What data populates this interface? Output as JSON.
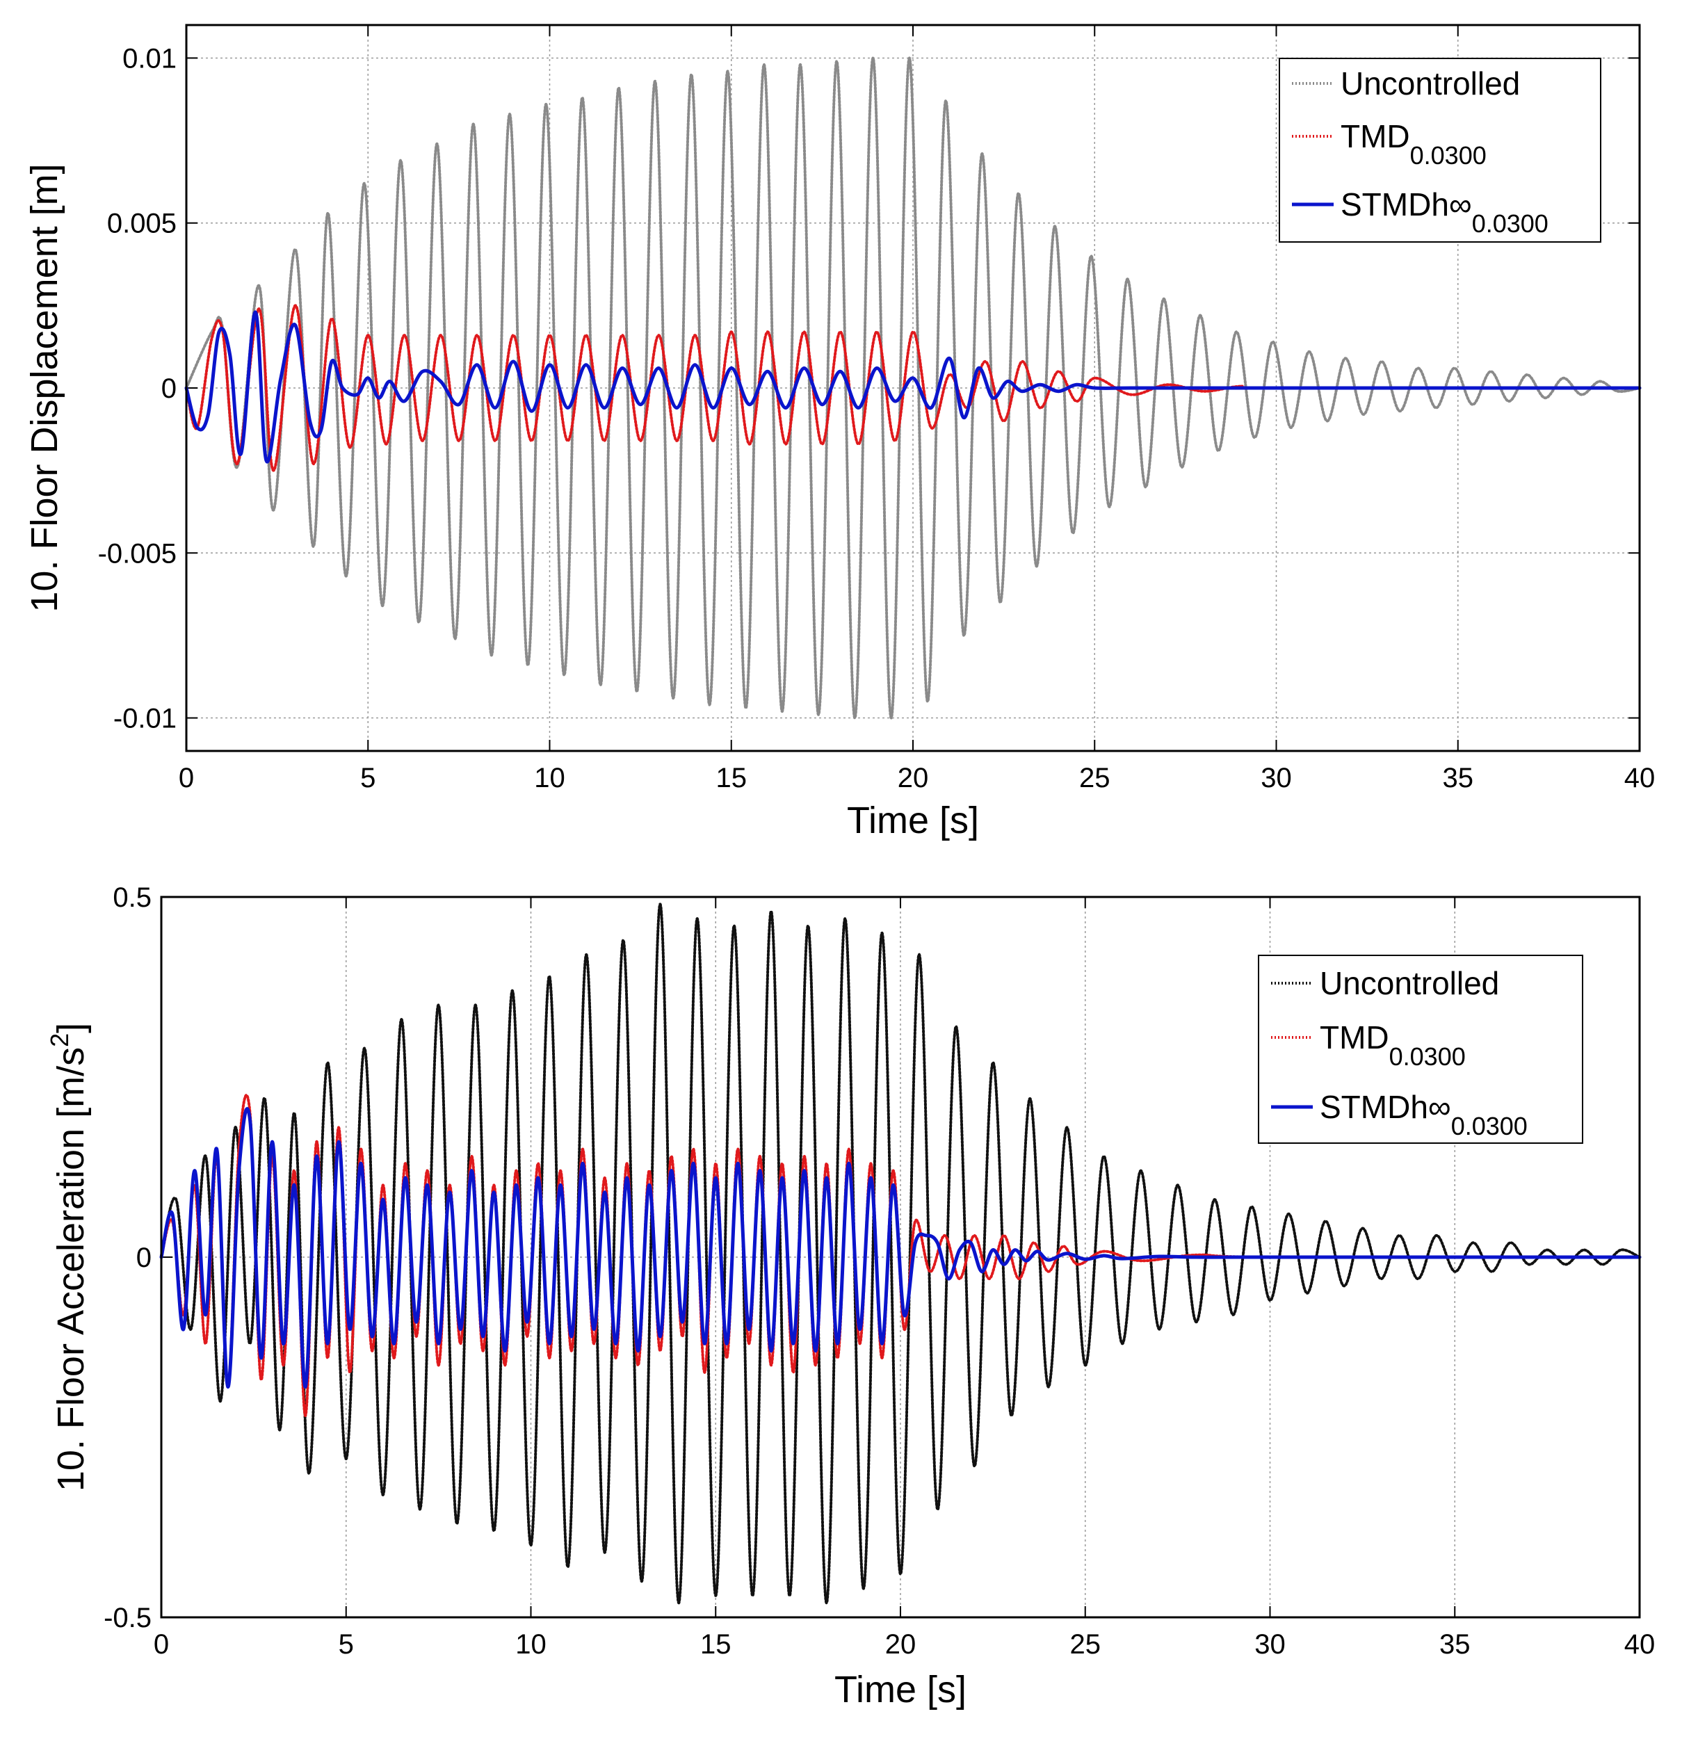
{
  "chart_data": [
    {
      "type": "line",
      "xlabel": "Time [s]",
      "ylabel": "10. Floor Displacement [m]",
      "xlim": [
        0,
        40
      ],
      "ylim": [
        -0.011,
        0.011
      ],
      "xticks": [
        0,
        5,
        10,
        15,
        20,
        25,
        30,
        35,
        40
      ],
      "xtick_labels": [
        "0",
        "5",
        "10",
        "15",
        "20",
        "25",
        "30",
        "35",
        "40"
      ],
      "yticks": [
        -0.01,
        -0.005,
        0,
        0.005,
        0.01
      ],
      "ytick_labels": [
        "-0.01",
        "-0.005",
        "0",
        "0.005",
        "0.01"
      ],
      "grid": true,
      "legend_position": "top-right",
      "series": [
        {
          "name": "Uncontrolled",
          "color": "#8a8a8a",
          "style": "dotted",
          "x": [
            0,
            0.7,
            1.0,
            1.4,
            2.0,
            2.4,
            3.0,
            3.5,
            3.9,
            4.4,
            4.9,
            5.4,
            5.9,
            6.4,
            6.9,
            7.4,
            7.9,
            8.4,
            8.9,
            9.4,
            9.9,
            10.4,
            10.9,
            11.4,
            11.9,
            12.4,
            12.9,
            13.4,
            13.9,
            14.4,
            14.9,
            15.4,
            15.9,
            16.4,
            16.9,
            17.4,
            17.9,
            18.4,
            18.9,
            19.4,
            19.9,
            20.4,
            20.9,
            21.4,
            21.9,
            22.4,
            22.9,
            23.4,
            23.9,
            24.4,
            24.9,
            25.4,
            25.9,
            26.4,
            26.9,
            27.4,
            27.9,
            28.4,
            28.9,
            29.4,
            29.9,
            30.4,
            30.9,
            31.4,
            31.9,
            32.4,
            32.9,
            33.4,
            33.9,
            34.4,
            34.9,
            35.4,
            35.9,
            36.4,
            36.9,
            37.4,
            37.9,
            38.4,
            38.9,
            39.4,
            40.0
          ],
          "y": [
            0,
            0.0017,
            0.0018,
            -0.0024,
            0.0031,
            -0.0037,
            0.0042,
            -0.0048,
            0.0053,
            -0.0057,
            0.0062,
            -0.0066,
            0.0069,
            -0.0071,
            0.0074,
            -0.0076,
            0.008,
            -0.0081,
            0.0083,
            -0.0084,
            0.0086,
            -0.0087,
            0.0088,
            -0.009,
            0.0091,
            -0.0092,
            0.0093,
            -0.0094,
            0.0095,
            -0.0096,
            0.0096,
            -0.0097,
            0.0098,
            -0.0098,
            0.0098,
            -0.0099,
            0.0099,
            -0.01,
            0.01,
            -0.01,
            0.01,
            -0.0095,
            0.0087,
            -0.0075,
            0.0071,
            -0.0065,
            0.0059,
            -0.0054,
            0.0049,
            -0.0044,
            0.004,
            -0.0036,
            0.0033,
            -0.003,
            0.0027,
            -0.0024,
            0.0022,
            -0.0019,
            0.0017,
            -0.0015,
            0.0014,
            -0.0012,
            0.0011,
            -0.001,
            0.0009,
            -0.0008,
            0.0008,
            -0.0007,
            0.0006,
            -0.0006,
            0.0006,
            -0.0005,
            0.0005,
            -0.0004,
            0.0004,
            -0.0003,
            0.0003,
            -0.0002,
            0.0002,
            -0.0001,
            0
          ]
        },
        {
          "name": "TMD",
          "name_subscript": "0.0300",
          "color": "#e0191c",
          "style": "dotted",
          "x": [
            0,
            0.3,
            0.7,
            1.0,
            1.4,
            2.0,
            2.4,
            3.0,
            3.5,
            4.0,
            4.5,
            5.0,
            5.5,
            6.0,
            6.5,
            7.0,
            7.5,
            8.0,
            8.5,
            9.0,
            9.5,
            10.0,
            10.5,
            11.0,
            11.5,
            12.0,
            12.5,
            13.0,
            13.5,
            14.0,
            14.5,
            15.0,
            15.5,
            16.0,
            16.5,
            17.0,
            17.5,
            18.0,
            18.5,
            19.0,
            19.5,
            20.0,
            20.5,
            21.0,
            21.5,
            22.0,
            22.5,
            23.0,
            23.5,
            24.0,
            24.5,
            25.0,
            26.0,
            27.0,
            28.0,
            29.0,
            30.0,
            40.0
          ],
          "y": [
            0,
            -0.0012,
            0.0015,
            0.0017,
            -0.0023,
            0.0024,
            -0.0025,
            0.0025,
            -0.0023,
            0.0021,
            -0.0018,
            0.0016,
            -0.0017,
            0.0016,
            -0.0016,
            0.0016,
            -0.0016,
            0.0016,
            -0.0016,
            0.0016,
            -0.0016,
            0.0016,
            -0.0016,
            0.0016,
            -0.0016,
            0.0016,
            -0.0016,
            0.0016,
            -0.0016,
            0.0016,
            -0.0016,
            0.0017,
            -0.0017,
            0.0017,
            -0.0017,
            0.0017,
            -0.0017,
            0.0017,
            -0.0017,
            0.0017,
            -0.0016,
            0.0017,
            -0.0012,
            0.0004,
            -0.0006,
            0.0008,
            -0.001,
            0.0008,
            -0.0006,
            0.0005,
            -0.0004,
            0.0003,
            -0.0002,
            0.0001,
            -0.0001,
            5e-05,
            0,
            0
          ]
        },
        {
          "name": "STMDh∞",
          "name_subscript": "0.0300",
          "color": "#0a14cc",
          "style": "solid",
          "x": [
            0,
            0.3,
            0.6,
            0.9,
            1.2,
            1.5,
            1.9,
            2.2,
            2.6,
            3.0,
            3.4,
            3.7,
            4.0,
            4.3,
            4.7,
            5.0,
            5.3,
            5.6,
            6.0,
            6.5,
            7.0,
            7.5,
            8.0,
            8.5,
            9.0,
            9.5,
            10.0,
            10.5,
            11.0,
            11.5,
            12.0,
            12.5,
            13.0,
            13.5,
            14.0,
            14.5,
            15.0,
            15.5,
            16.0,
            16.5,
            17.0,
            17.5,
            18.0,
            18.5,
            19.0,
            19.5,
            20.0,
            20.5,
            21.0,
            21.4,
            21.8,
            22.2,
            22.6,
            23.0,
            23.5,
            24.0,
            24.5,
            25.0,
            26.0,
            27.0,
            28.0,
            30.0,
            40.0
          ],
          "y": [
            0,
            -0.0012,
            -0.0008,
            0.0017,
            0.001,
            -0.002,
            0.0023,
            -0.0022,
            0.0003,
            0.0019,
            -0.001,
            -0.0013,
            0.0008,
            0.0,
            -0.0002,
            0.0003,
            -0.0003,
            0.0002,
            -0.0004,
            0.0005,
            0.0002,
            -0.0005,
            0.0007,
            -0.0006,
            0.0008,
            -0.0007,
            0.0007,
            -0.0006,
            0.0007,
            -0.0006,
            0.0006,
            -0.0005,
            0.0006,
            -0.0006,
            0.0007,
            -0.0006,
            0.0006,
            -0.0005,
            0.0005,
            -0.0006,
            0.0006,
            -0.0005,
            0.0005,
            -0.0006,
            0.0006,
            -0.0004,
            0.0003,
            -0.0006,
            0.0009,
            -0.0009,
            0.0006,
            -0.0003,
            0.0002,
            -0.0001,
            0.0001,
            -0.0001,
            0.0001,
            0,
            0,
            0,
            0,
            0,
            0
          ]
        }
      ]
    },
    {
      "type": "line",
      "xlabel": "Time [s]",
      "ylabel": "10. Floor Acceleration [m/s",
      "ylabel_superscript": "2",
      "ylabel_suffix": "]",
      "xlim": [
        0,
        40
      ],
      "ylim": [
        -0.5,
        0.5
      ],
      "xticks": [
        0,
        5,
        10,
        15,
        20,
        25,
        30,
        35,
        40
      ],
      "xtick_labels": [
        "0",
        "5",
        "10",
        "15",
        "20",
        "25",
        "30",
        "35",
        "40"
      ],
      "yticks": [
        -0.5,
        0,
        0.5
      ],
      "ytick_labels": [
        "-0.5",
        "0",
        "0.5"
      ],
      "grid": true,
      "legend_position": "top-right",
      "series": [
        {
          "name": "Uncontrolled",
          "color": "#111111",
          "style": "dotted",
          "x": [
            0,
            0.4,
            0.8,
            1.2,
            1.6,
            2.0,
            2.4,
            2.8,
            3.2,
            3.6,
            4.0,
            4.5,
            5.0,
            5.5,
            6.0,
            6.5,
            7.0,
            7.5,
            8.0,
            8.5,
            9.0,
            9.5,
            10.0,
            10.5,
            11.0,
            11.5,
            12.0,
            12.5,
            13.0,
            13.5,
            14.0,
            14.5,
            15.0,
            15.5,
            16.0,
            16.5,
            17.0,
            17.5,
            18.0,
            18.5,
            19.0,
            19.5,
            20.0,
            20.5,
            21.0,
            21.5,
            22.0,
            22.5,
            23.0,
            23.5,
            24.0,
            24.5,
            25.0,
            25.5,
            26.0,
            26.5,
            27.0,
            27.5,
            28.0,
            28.5,
            29.0,
            29.5,
            30.0,
            30.5,
            31.0,
            31.5,
            32.0,
            32.5,
            33.0,
            33.5,
            34.0,
            34.5,
            35.0,
            35.5,
            36.0,
            36.5,
            37.0,
            37.5,
            38.0,
            38.5,
            39.0,
            39.5,
            40.0
          ],
          "y": [
            0,
            0.08,
            -0.1,
            0.14,
            -0.2,
            0.18,
            -0.12,
            0.22,
            -0.24,
            0.2,
            -0.3,
            0.27,
            -0.28,
            0.29,
            -0.33,
            0.33,
            -0.35,
            0.35,
            -0.37,
            0.35,
            -0.38,
            0.37,
            -0.4,
            0.39,
            -0.43,
            0.42,
            -0.41,
            0.44,
            -0.45,
            0.49,
            -0.48,
            0.47,
            -0.47,
            0.46,
            -0.47,
            0.48,
            -0.47,
            0.46,
            -0.48,
            0.47,
            -0.46,
            0.45,
            -0.44,
            0.42,
            -0.35,
            0.32,
            -0.29,
            0.27,
            -0.22,
            0.22,
            -0.18,
            0.18,
            -0.15,
            0.14,
            -0.12,
            0.12,
            -0.1,
            0.1,
            -0.09,
            0.08,
            -0.08,
            0.07,
            -0.06,
            0.06,
            -0.05,
            0.05,
            -0.04,
            0.04,
            -0.03,
            0.03,
            -0.03,
            0.03,
            -0.02,
            0.02,
            -0.02,
            0.02,
            -0.01,
            0.01,
            -0.01,
            0.01,
            -0.01,
            0.01,
            0
          ]
        },
        {
          "name": "TMD",
          "name_subscript": "0.0300",
          "color": "#e0191c",
          "style": "dotted",
          "x": [
            0,
            0.3,
            0.6,
            0.9,
            1.2,
            1.5,
            1.8,
            2.1,
            2.4,
            2.7,
            3.0,
            3.3,
            3.6,
            3.9,
            4.2,
            4.5,
            4.8,
            5.1,
            5.4,
            5.7,
            6.0,
            6.3,
            6.6,
            6.9,
            7.2,
            7.5,
            7.8,
            8.1,
            8.4,
            8.7,
            9.0,
            9.3,
            9.6,
            9.9,
            10.2,
            10.5,
            10.8,
            11.1,
            11.4,
            11.7,
            12.0,
            12.3,
            12.6,
            12.9,
            13.2,
            13.5,
            13.8,
            14.1,
            14.4,
            14.7,
            15.0,
            15.3,
            15.6,
            15.9,
            16.2,
            16.5,
            16.8,
            17.1,
            17.4,
            17.7,
            18.0,
            18.3,
            18.6,
            18.9,
            19.2,
            19.5,
            19.8,
            20.1,
            20.4,
            20.8,
            21.2,
            21.6,
            22.0,
            22.4,
            22.8,
            23.2,
            23.6,
            24.0,
            24.4,
            24.8,
            25.5,
            26.5,
            28.0,
            30.0,
            40.0
          ],
          "y": [
            0,
            0.05,
            -0.08,
            0.1,
            -0.12,
            0.14,
            -0.18,
            0.15,
            0.2,
            -0.17,
            0.14,
            -0.15,
            0.12,
            -0.22,
            0.16,
            -0.14,
            0.18,
            -0.16,
            0.15,
            -0.13,
            0.1,
            -0.14,
            0.13,
            -0.11,
            0.12,
            -0.15,
            0.1,
            -0.12,
            0.14,
            -0.13,
            0.1,
            -0.15,
            0.12,
            -0.11,
            0.13,
            -0.14,
            0.12,
            -0.13,
            0.15,
            -0.12,
            0.11,
            -0.14,
            0.13,
            -0.15,
            0.12,
            -0.13,
            0.14,
            -0.11,
            0.15,
            -0.16,
            0.13,
            -0.14,
            0.15,
            -0.12,
            0.14,
            -0.15,
            0.13,
            -0.16,
            0.14,
            -0.15,
            0.13,
            -0.14,
            0.15,
            -0.12,
            0.13,
            -0.14,
            0.12,
            -0.1,
            0.05,
            -0.02,
            0.03,
            -0.03,
            0.03,
            -0.03,
            0.03,
            -0.03,
            0.02,
            -0.02,
            0.015,
            -0.01,
            0.008,
            -0.005,
            0.003,
            0,
            0
          ]
        },
        {
          "name": "STMDh∞",
          "name_subscript": "0.0300",
          "color": "#0a14cc",
          "style": "solid",
          "x": [
            0,
            0.3,
            0.6,
            0.9,
            1.2,
            1.5,
            1.8,
            2.1,
            2.4,
            2.7,
            3.0,
            3.3,
            3.6,
            3.9,
            4.2,
            4.5,
            4.8,
            5.1,
            5.4,
            5.7,
            6.0,
            6.3,
            6.6,
            6.9,
            7.2,
            7.5,
            7.8,
            8.1,
            8.4,
            8.7,
            9.0,
            9.3,
            9.6,
            9.9,
            10.2,
            10.5,
            10.8,
            11.1,
            11.4,
            11.7,
            12.0,
            12.3,
            12.6,
            12.9,
            13.2,
            13.5,
            13.8,
            14.1,
            14.4,
            14.7,
            15.0,
            15.3,
            15.6,
            15.9,
            16.2,
            16.5,
            16.8,
            17.1,
            17.4,
            17.7,
            18.0,
            18.3,
            18.6,
            18.9,
            19.2,
            19.5,
            19.8,
            20.1,
            20.4,
            20.7,
            21.0,
            21.3,
            21.6,
            21.9,
            22.2,
            22.5,
            22.8,
            23.1,
            23.4,
            23.7,
            24.0,
            24.5,
            25.0,
            25.5,
            26.0,
            27.0,
            28.0,
            30.0,
            40.0
          ],
          "y": [
            0,
            0.06,
            -0.1,
            0.12,
            -0.08,
            0.15,
            -0.18,
            0.12,
            0.19,
            -0.14,
            0.16,
            -0.12,
            0.1,
            -0.18,
            0.14,
            -0.12,
            0.16,
            -0.1,
            0.13,
            -0.11,
            0.08,
            -0.12,
            0.11,
            -0.09,
            0.1,
            -0.12,
            0.09,
            -0.1,
            0.12,
            -0.11,
            0.09,
            -0.13,
            0.1,
            -0.09,
            0.11,
            -0.12,
            0.1,
            -0.11,
            0.13,
            -0.1,
            0.09,
            -0.12,
            0.11,
            -0.13,
            0.1,
            -0.11,
            0.12,
            -0.09,
            0.13,
            -0.12,
            0.11,
            -0.12,
            0.13,
            -0.1,
            0.12,
            -0.13,
            0.11,
            -0.12,
            0.12,
            -0.13,
            0.11,
            -0.12,
            0.13,
            -0.1,
            0.11,
            -0.12,
            0.1,
            -0.08,
            0.02,
            0.03,
            0.02,
            -0.03,
            0.01,
            0.02,
            -0.02,
            0.01,
            -0.01,
            0.01,
            -0.005,
            0.008,
            -0.004,
            0.005,
            -0.003,
            0.002,
            -0.002,
            0.001,
            0,
            0,
            0
          ]
        }
      ]
    }
  ]
}
